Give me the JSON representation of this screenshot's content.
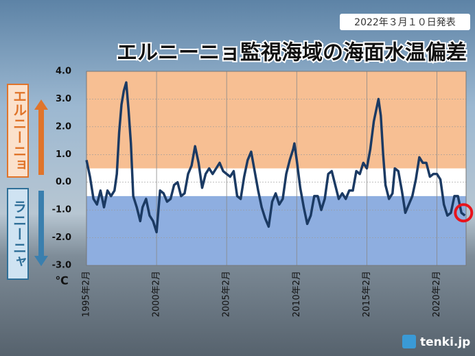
{
  "chart_data": {
    "type": "line",
    "title": "エルニーニョ監視海域の海面水温偏差",
    "subtitle": "2022年３月１０日発表",
    "unit": "℃",
    "side_labels": [
      "エルニーニョ",
      "ラニーニャ"
    ],
    "source": "tenki.jp",
    "xlim": [
      "1995-02",
      "2022-03"
    ],
    "xticks": [
      {
        "value": "1995-02",
        "label": "1995年2月"
      },
      {
        "value": "2000-02",
        "label": "2000年2月"
      },
      {
        "value": "2005-02",
        "label": "2005年2月"
      },
      {
        "value": "2010-02",
        "label": "2010年2月"
      },
      {
        "value": "2015-02",
        "label": "2015年2月"
      },
      {
        "value": "2020-02",
        "label": "2020年2月"
      }
    ],
    "ylim": [
      -3,
      4
    ],
    "yticks": [
      {
        "value": 4,
        "label": "4.0"
      },
      {
        "value": 3,
        "label": "3.0"
      },
      {
        "value": 2,
        "label": "2.0"
      },
      {
        "value": 1,
        "label": "1.0"
      },
      {
        "value": 0,
        "label": "0.0"
      },
      {
        "value": -1,
        "label": "-1.0"
      },
      {
        "value": -2,
        "label": "-2.0"
      },
      {
        "value": -3,
        "label": "-3.0"
      }
    ],
    "bands": [
      {
        "from": 0.5,
        "to": 4,
        "color": "#f7bf93"
      },
      {
        "from": -0.5,
        "to": 0.5,
        "color": "#ffffff"
      },
      {
        "from": -3,
        "to": -0.5,
        "color": "#8eaee0"
      }
    ],
    "x": [
      "1995-02",
      "1995-05",
      "1995-08",
      "1995-11",
      "1996-02",
      "1996-05",
      "1996-08",
      "1996-11",
      "1997-02",
      "1997-04",
      "1997-06",
      "1997-08",
      "1997-10",
      "1997-12",
      "1998-02",
      "1998-04",
      "1998-06",
      "1998-09",
      "1998-12",
      "1999-02",
      "1999-05",
      "1999-08",
      "1999-11",
      "2000-02",
      "2000-05",
      "2000-08",
      "2000-11",
      "2001-02",
      "2001-05",
      "2001-08",
      "2001-11",
      "2002-02",
      "2002-05",
      "2002-08",
      "2002-11",
      "2003-02",
      "2003-05",
      "2003-08",
      "2003-11",
      "2004-02",
      "2004-05",
      "2004-08",
      "2004-11",
      "2005-02",
      "2005-05",
      "2005-08",
      "2005-11",
      "2006-02",
      "2006-05",
      "2006-08",
      "2006-11",
      "2007-02",
      "2007-05",
      "2007-08",
      "2007-11",
      "2008-02",
      "2008-05",
      "2008-08",
      "2008-11",
      "2009-02",
      "2009-05",
      "2009-08",
      "2009-11",
      "2009-12",
      "2010-02",
      "2010-05",
      "2010-08",
      "2010-11",
      "2011-02",
      "2011-05",
      "2011-08",
      "2011-11",
      "2012-02",
      "2012-05",
      "2012-08",
      "2012-11",
      "2013-02",
      "2013-05",
      "2013-08",
      "2013-11",
      "2014-02",
      "2014-05",
      "2014-08",
      "2014-11",
      "2015-02",
      "2015-05",
      "2015-08",
      "2015-11",
      "2015-12",
      "2016-02",
      "2016-04",
      "2016-06",
      "2016-09",
      "2016-12",
      "2017-02",
      "2017-05",
      "2017-08",
      "2017-11",
      "2018-02",
      "2018-05",
      "2018-08",
      "2018-11",
      "2019-02",
      "2019-05",
      "2019-08",
      "2019-11",
      "2020-02",
      "2020-05",
      "2020-08",
      "2020-11",
      "2021-02",
      "2021-05",
      "2021-08",
      "2021-11",
      "2022-02"
    ],
    "series": [
      {
        "color": "#1b3a63",
        "values": [
          0.8,
          0.2,
          -0.6,
          -0.8,
          -0.3,
          -0.9,
          -0.3,
          -0.5,
          -0.3,
          0.3,
          1.8,
          2.8,
          3.3,
          3.6,
          2.6,
          1.4,
          -0.5,
          -0.9,
          -1.4,
          -0.9,
          -0.6,
          -1.2,
          -1.4,
          -1.8,
          -0.3,
          -0.4,
          -0.7,
          -0.6,
          -0.1,
          0.0,
          -0.5,
          -0.4,
          0.3,
          0.6,
          1.3,
          0.7,
          -0.2,
          0.3,
          0.5,
          0.3,
          0.5,
          0.7,
          0.4,
          0.3,
          0.2,
          0.4,
          -0.5,
          -0.6,
          0.2,
          0.8,
          1.1,
          0.4,
          -0.3,
          -0.9,
          -1.3,
          -1.6,
          -0.7,
          -0.4,
          -0.8,
          -0.6,
          0.3,
          0.8,
          1.2,
          1.4,
          0.8,
          -0.2,
          -0.9,
          -1.5,
          -1.2,
          -0.5,
          -0.5,
          -1.0,
          -0.6,
          0.3,
          0.4,
          -0.1,
          -0.6,
          -0.4,
          -0.6,
          -0.3,
          -0.3,
          0.4,
          0.3,
          0.7,
          0.5,
          1.2,
          2.2,
          2.8,
          3.0,
          2.4,
          1.0,
          -0.1,
          -0.6,
          -0.4,
          0.5,
          0.4,
          -0.3,
          -1.1,
          -0.8,
          -0.5,
          0.1,
          0.9,
          0.7,
          0.7,
          0.2,
          0.3,
          0.3,
          0.1,
          -0.8,
          -1.2,
          -1.1,
          -0.5,
          -0.5,
          -1.1,
          -1.2
        ]
      }
    ],
    "grid": true
  }
}
